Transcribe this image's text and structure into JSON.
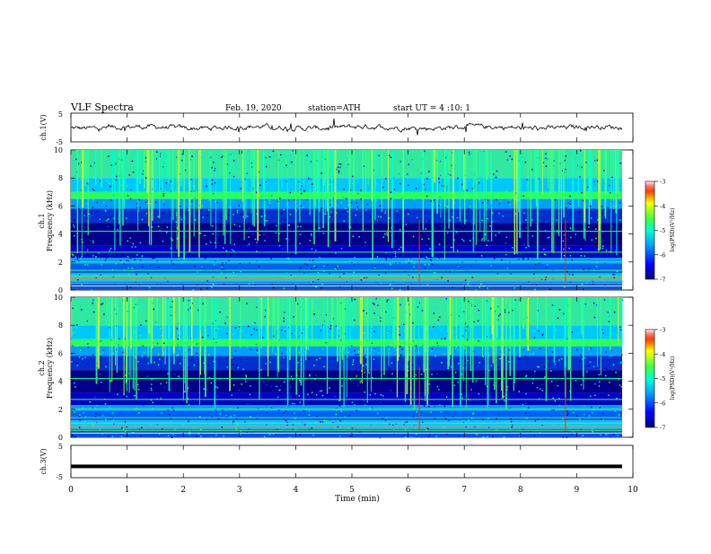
{
  "header": {
    "title": "VLF  Spectra",
    "date": "Feb. 19, 2020",
    "station": "station=ATH",
    "start_ut": "start  UT  =   4  :10: 1"
  },
  "colorbar": {
    "label": "log(PSD)(V²/Hz)",
    "ticks": [
      "-3",
      "-4",
      "-5",
      "-6",
      "-7"
    ]
  },
  "chart_data": [
    {
      "type": "line",
      "ylabel": "ch.1(V)",
      "ylim": [
        -5,
        5
      ],
      "ytick_labels": [
        "5",
        "-5"
      ],
      "note": "noisy time-series trace near 0 V"
    },
    {
      "type": "heatmap",
      "ylabel_line1": "ch.1",
      "ylabel_line2": "Frequency  (kHz)",
      "ylim": [
        0,
        10
      ],
      "ytick_labels": [
        "0",
        "2",
        "4",
        "6",
        "8",
        "10"
      ],
      "clim": [
        -7,
        -3
      ]
    },
    {
      "type": "heatmap",
      "ylabel_line1": "ch.2",
      "ylabel_line2": "Frequency  (kHz)",
      "ylim": [
        0,
        10
      ],
      "ytick_labels": [
        "0",
        "2",
        "4",
        "6",
        "8",
        "10"
      ],
      "clim": [
        -7,
        -3
      ]
    },
    {
      "type": "line",
      "ylabel": "ch.3(V)",
      "ylim": [
        -5,
        5
      ],
      "ytick_labels": [
        "5",
        "-5"
      ],
      "value": -1.5,
      "note": "flat thick trace"
    }
  ],
  "xaxis": {
    "label": "Time  (min)",
    "xlim": [
      0,
      10
    ],
    "tick_labels": [
      "0",
      "1",
      "2",
      "3",
      "4",
      "5",
      "6",
      "7",
      "8",
      "9",
      "10"
    ]
  },
  "colors": {
    "trace": "#000000",
    "spectrogram_low": "#00007f",
    "spectrogram_mid": "#00a0ff",
    "spectrogram_high": "#00ff80",
    "spectrogram_peak": "#ff0000"
  }
}
